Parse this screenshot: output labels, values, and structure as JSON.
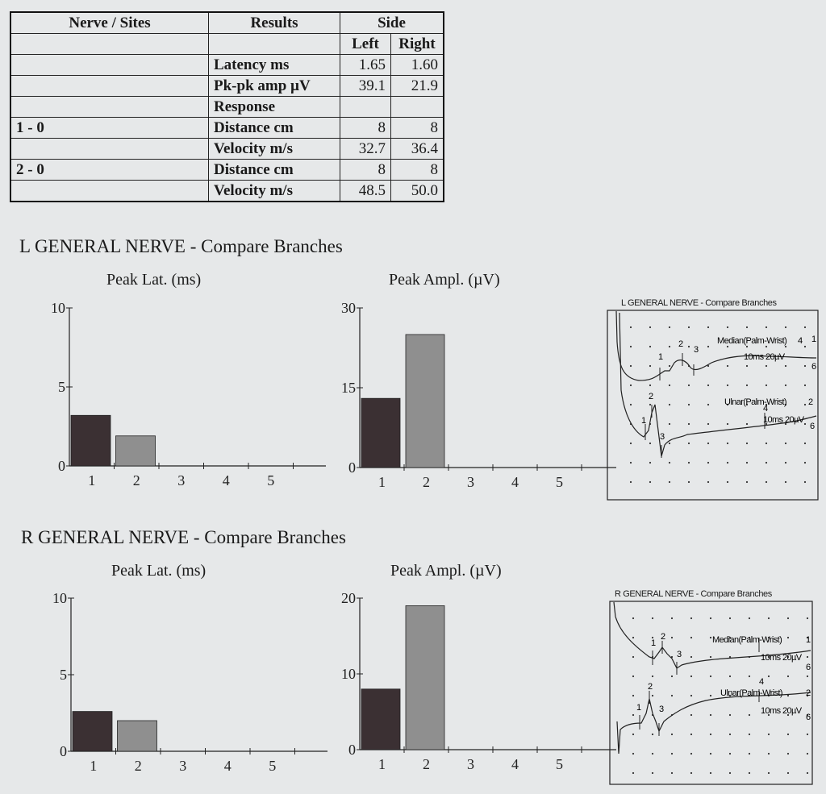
{
  "table": {
    "header1": [
      "Nerve / Sites",
      "Results",
      "Side"
    ],
    "header2": [
      "Left",
      "Right"
    ],
    "rows": [
      {
        "site": "",
        "result": "Latency ms",
        "left": "1.65",
        "right": "1.60"
      },
      {
        "site": "",
        "result": "Pk-pk amp µV",
        "left": "39.1",
        "right": "21.9"
      },
      {
        "site": "",
        "result": "Response",
        "left": "",
        "right": ""
      },
      {
        "site": "1  -  0",
        "result": "Distance cm",
        "left": "8",
        "right": "8"
      },
      {
        "site": "",
        "result": "Velocity m/s",
        "left": "32.7",
        "right": "36.4"
      },
      {
        "site": "2  -  0",
        "result": "Distance cm",
        "left": "8",
        "right": "8"
      },
      {
        "site": "",
        "result": "Velocity m/s",
        "left": "48.5",
        "right": "50.0"
      }
    ]
  },
  "sections": [
    {
      "title": "L GENERAL NERVE - Compare Branches"
    },
    {
      "title": "R GENERAL NERVE - Compare Branches"
    }
  ],
  "chart_data": [
    {
      "type": "bar",
      "title": "Peak Lat. (ms)",
      "categories": [
        "1",
        "2",
        "3",
        "4",
        "5"
      ],
      "values": [
        3.2,
        1.9,
        0,
        0,
        0
      ],
      "ylim": [
        0,
        10
      ],
      "yticks": [
        "0",
        "5",
        "10"
      ],
      "colors": [
        "#3b3033",
        "#8f8f8f"
      ]
    },
    {
      "type": "bar",
      "title": "Peak Ampl. (µV)",
      "categories": [
        "1",
        "2",
        "3",
        "4",
        "5"
      ],
      "values": [
        13,
        25,
        0,
        0,
        0
      ],
      "ylim": [
        0,
        30
      ],
      "yticks": [
        "0",
        "15",
        "30"
      ],
      "colors": [
        "#3b3033",
        "#8f8f8f"
      ]
    },
    {
      "type": "bar",
      "title": "Peak Lat. (ms)",
      "categories": [
        "1",
        "2",
        "3",
        "4",
        "5"
      ],
      "values": [
        2.6,
        2.0,
        0,
        0,
        0
      ],
      "ylim": [
        0,
        10
      ],
      "yticks": [
        "0",
        "5",
        "10"
      ],
      "colors": [
        "#3b3033",
        "#8f8f8f"
      ]
    },
    {
      "type": "bar",
      "title": "Peak Ampl. (µV)",
      "categories": [
        "1",
        "2",
        "3",
        "4",
        "5"
      ],
      "values": [
        8,
        19,
        0,
        0,
        0
      ],
      "ylim": [
        0,
        20
      ],
      "yticks": [
        "0",
        "10",
        "20"
      ],
      "colors": [
        "#3b3033",
        "#8f8f8f"
      ]
    }
  ],
  "waveforms": [
    {
      "title": "L GENERAL NERVE - Compare Branches",
      "trace1_label": "Median(Palm-Wrist)",
      "trace1_channel": "1",
      "trace1_scale": "10ms 20µV",
      "trace2_label": "Ulnar(Palm-Wrist)",
      "trace2_channel": "2",
      "trace2_scale": "10ms 20µV",
      "marks": [
        "1",
        "2",
        "3",
        "4",
        "6"
      ]
    },
    {
      "title": "R GENERAL NERVE - Compare Branches",
      "trace1_label": "Median(Palm-Wrist)",
      "trace1_channel": "1",
      "trace1_scale": "10ms 20µV",
      "trace2_label": "Ulnar(Palm-Wrist)",
      "trace2_channel": "2",
      "trace2_scale": "10ms 20µV",
      "marks": [
        "1",
        "2",
        "3",
        "4",
        "6"
      ]
    }
  ]
}
